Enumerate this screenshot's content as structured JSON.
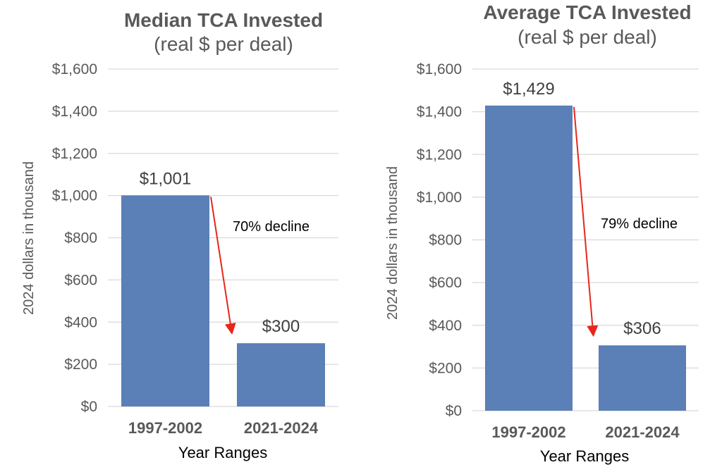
{
  "chart_data": [
    {
      "type": "bar",
      "title": "Median TCA Invested",
      "subtitle": "(real $ per deal)",
      "xlabel": "Year Ranges",
      "ylabel": "2024 dollars in thousand",
      "categories": [
        "1997-2002",
        "2021-2024"
      ],
      "values": [
        1001,
        300
      ],
      "data_labels": [
        "$1,001",
        "$300"
      ],
      "ylim": [
        0,
        1600
      ],
      "yticks": [
        0,
        200,
        400,
        600,
        800,
        1000,
        1200,
        1400,
        1600
      ],
      "ytick_labels": [
        "$0",
        "$200",
        "$400",
        "$600",
        "$800",
        "$1,000",
        "$1,200",
        "$1,400",
        "$1,600"
      ],
      "grid": true,
      "annotation": "70% decline",
      "bar_color": "#5b7fb7",
      "arrow_color": "#e8261c"
    },
    {
      "type": "bar",
      "title": "Average TCA Invested",
      "subtitle": "(real $ per deal)",
      "xlabel": "Year Ranges",
      "ylabel": "2024 dollars in thousand",
      "categories": [
        "1997-2002",
        "2021-2024"
      ],
      "values": [
        1429,
        306
      ],
      "data_labels": [
        "$1,429",
        "$306"
      ],
      "ylim": [
        0,
        1600
      ],
      "yticks": [
        0,
        200,
        400,
        600,
        800,
        1000,
        1200,
        1400,
        1600
      ],
      "ytick_labels": [
        "$0",
        "$200",
        "$400",
        "$600",
        "$800",
        "$1,000",
        "$1,200",
        "$1,400",
        "$1,600"
      ],
      "grid": true,
      "annotation": "79% decline",
      "bar_color": "#5b7fb7",
      "arrow_color": "#e8261c"
    }
  ]
}
